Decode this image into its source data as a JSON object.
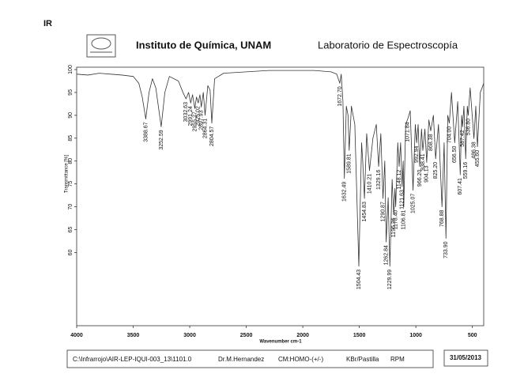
{
  "chart_data": {
    "type": "line",
    "label": "IR",
    "institution": "Instituto de Química, UNAM",
    "title": "Laboratorio de Espectroscopía",
    "xlabel": "Wavenumber cm-1",
    "ylabel": "Transmittance [%]",
    "xlim": [
      4000,
      400
    ],
    "ylim": [
      44,
      100
    ],
    "xticks": [
      4000,
      3500,
      3000,
      2500,
      2000,
      1500,
      1000,
      500
    ],
    "yticks": [
      100,
      95,
      90,
      85,
      80,
      75,
      70,
      65,
      60
    ],
    "color": "#333333",
    "x": [
      4000,
      3900,
      3800,
      3700,
      3600,
      3500,
      3450,
      3420,
      3388.67,
      3360,
      3330,
      3300,
      3252.59,
      3220,
      3180,
      3100,
      3060,
      3032.63,
      3010,
      2991.24,
      2975,
      2955.27,
      2940,
      2925.02,
      2910,
      2897.93,
      2880,
      2864.31,
      2840,
      2820,
      2804.57,
      2780,
      2700,
      2500,
      2300,
      2100,
      1900,
      1750,
      1700,
      1672.7,
      1660,
      1645,
      1632.49,
      1615,
      1600,
      1589.81,
      1570,
      1540,
      1504.43,
      1480,
      1470,
      1454.83,
      1435,
      1410.21,
      1380,
      1350,
      1329.16,
      1310,
      1290.87,
      1275,
      1262.84,
      1245,
      1229.99,
      1210,
      1195.26,
      1185,
      1178.4,
      1160,
      1148.12,
      1135,
      1121.63,
      1112,
      1106.81,
      1090,
      1071.84,
      1050,
      1025.07,
      1005,
      992.94,
      980,
      966.2,
      950,
      938.41,
      920,
      904.13,
      885,
      868.38,
      845,
      825.2,
      800,
      768.88,
      750,
      733.9,
      718,
      704.0,
      685,
      656.5,
      630,
      607.41,
      595,
      587.42,
      575,
      559.16,
      545,
      536.8,
      520,
      486.38,
      470,
      455.6,
      430,
      400
    ],
    "values": [
      99,
      98.8,
      99.2,
      99,
      98.8,
      98.5,
      97,
      94,
      89.2,
      95,
      98,
      96,
      87.5,
      95,
      98.5,
      97.5,
      95,
      93.6,
      95,
      92.7,
      94.5,
      91.5,
      94,
      92.7,
      94.5,
      91.8,
      95,
      90,
      96.5,
      95.5,
      88.3,
      98,
      99.2,
      99.5,
      99.8,
      99.8,
      99.8,
      99.5,
      99,
      97,
      99,
      93,
      76.2,
      92,
      90,
      82.3,
      92,
      88,
      57,
      84,
      80,
      71.8,
      86,
      77.9,
      85,
      88,
      78.8,
      86,
      71.8,
      80,
      62.3,
      72,
      57,
      76,
      68.3,
      74,
      70,
      84,
      78.8,
      84,
      74.4,
      80,
      70,
      88,
      89.2,
      91,
      73.6,
      88,
      84,
      88,
      78.8,
      87,
      82.3,
      87,
      79.7,
      89,
      86.6,
      90,
      80.5,
      88,
      70,
      84,
      63.1,
      90,
      88.3,
      95,
      84,
      93,
      77,
      90,
      87.5,
      92,
      80.5,
      92,
      90,
      96,
      84.9,
      92,
      83.1,
      95,
      97
    ],
    "peaks": [
      {
        "x": 3388.67,
        "y": 89.2,
        "label": "3388.67"
      },
      {
        "x": 3252.59,
        "y": 87.5,
        "label": "3252.59"
      },
      {
        "x": 3032.63,
        "y": 93.6,
        "label": "3032.63"
      },
      {
        "x": 2991.24,
        "y": 92.7,
        "label": "2991.24"
      },
      {
        "x": 2955.27,
        "y": 91.5,
        "label": "2955.27"
      },
      {
        "x": 2925.02,
        "y": 92.7,
        "label": "2925.02"
      },
      {
        "x": 2897.93,
        "y": 91.8,
        "label": "2897.93"
      },
      {
        "x": 2864.31,
        "y": 90,
        "label": "2864.31"
      },
      {
        "x": 2804.57,
        "y": 88.3,
        "label": "2804.57"
      },
      {
        "x": 1672.7,
        "y": 97,
        "label": "1672.70"
      },
      {
        "x": 1632.49,
        "y": 76.2,
        "label": "1632.49"
      },
      {
        "x": 1589.81,
        "y": 82.3,
        "label": "1589.81"
      },
      {
        "x": 1504.43,
        "y": 57,
        "label": "1504.43"
      },
      {
        "x": 1454.83,
        "y": 71.8,
        "label": "1454.83"
      },
      {
        "x": 1410.21,
        "y": 77.9,
        "label": "1410.21"
      },
      {
        "x": 1329.16,
        "y": 78.8,
        "label": "1329.16"
      },
      {
        "x": 1290.87,
        "y": 71.8,
        "label": "1290.87"
      },
      {
        "x": 1262.84,
        "y": 62.3,
        "label": "1262.84"
      },
      {
        "x": 1229.99,
        "y": 57,
        "label": "1229.99"
      },
      {
        "x": 1195.26,
        "y": 68.3,
        "label": "1195.26"
      },
      {
        "x": 1178.4,
        "y": 70,
        "label": "1178.40"
      },
      {
        "x": 1148.12,
        "y": 78.8,
        "label": "1148.12"
      },
      {
        "x": 1121.63,
        "y": 74.4,
        "label": "1121.63"
      },
      {
        "x": 1106.81,
        "y": 70,
        "label": "1106.81"
      },
      {
        "x": 1071.84,
        "y": 89.2,
        "label": "1071.84"
      },
      {
        "x": 1025.07,
        "y": 73.6,
        "label": "1025.07"
      },
      {
        "x": 992.94,
        "y": 84,
        "label": "992.94"
      },
      {
        "x": 966.2,
        "y": 78.8,
        "label": "966.20"
      },
      {
        "x": 938.41,
        "y": 82.3,
        "label": "938.41"
      },
      {
        "x": 904.13,
        "y": 79.7,
        "label": "904.13"
      },
      {
        "x": 868.38,
        "y": 86.6,
        "label": "868.38"
      },
      {
        "x": 825.2,
        "y": 80.5,
        "label": "825.20"
      },
      {
        "x": 768.88,
        "y": 70,
        "label": "768.88"
      },
      {
        "x": 733.9,
        "y": 63.1,
        "label": "733.90"
      },
      {
        "x": 704.0,
        "y": 88.3,
        "label": "704.00"
      },
      {
        "x": 656.5,
        "y": 84,
        "label": "656.50"
      },
      {
        "x": 607.41,
        "y": 77,
        "label": "607.41"
      },
      {
        "x": 587.42,
        "y": 87.5,
        "label": "587.42"
      },
      {
        "x": 559.16,
        "y": 80.5,
        "label": "559.16"
      },
      {
        "x": 536.8,
        "y": 90,
        "label": "536.80"
      },
      {
        "x": 486.38,
        "y": 84.9,
        "label": "486.38"
      },
      {
        "x": 455.6,
        "y": 83.1,
        "label": "455.60"
      }
    ],
    "footer": {
      "file": "C:\\Infrarrojo\\AIR-LEP-IQUI-003_13\\1101.0",
      "operator": "Dr.M.Hernandez",
      "mode": "CM:HOMO-(+/-)",
      "sample": "KBr/Pastilla",
      "requester": "RPM",
      "date": "31/05/2013"
    }
  }
}
